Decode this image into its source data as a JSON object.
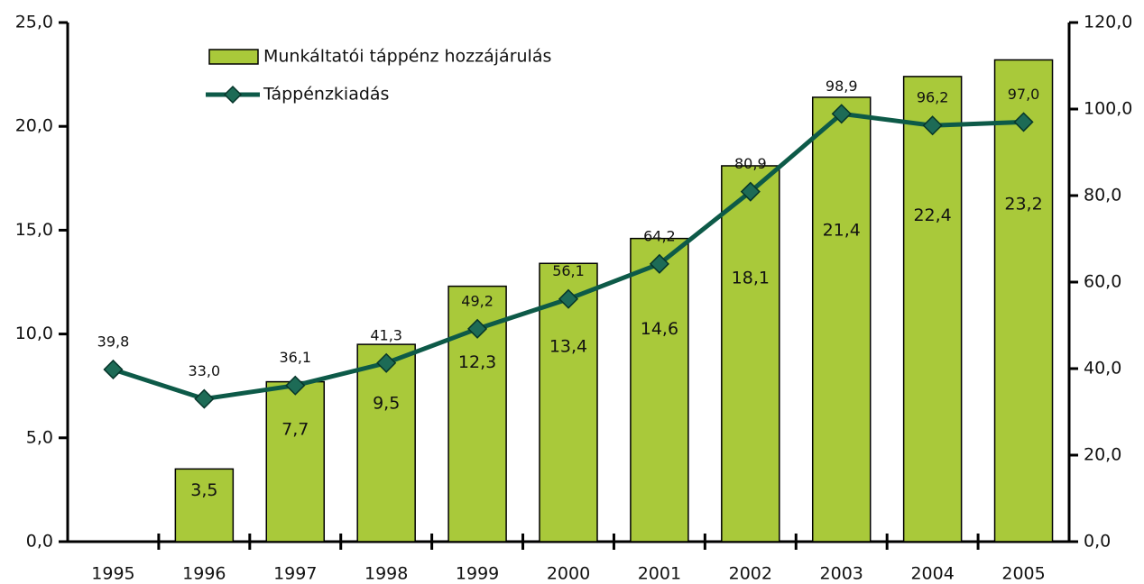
{
  "chart_data": {
    "type": "bar",
    "categories": [
      "1995",
      "1996",
      "1997",
      "1998",
      "1999",
      "2000",
      "2001",
      "2002",
      "2003",
      "2004",
      "2005"
    ],
    "series": [
      {
        "name": "Munkáltatói táppénz hozzájárulás",
        "type": "bar",
        "color": "#a9c93a",
        "values": [
          null,
          3.5,
          7.7,
          9.5,
          12.3,
          13.4,
          14.6,
          18.1,
          21.4,
          22.4,
          23.2
        ],
        "value_labels": [
          null,
          "3,5",
          "7,7",
          "9,5",
          "12,3",
          "13,4",
          "14,6",
          "18,1",
          "21,4",
          "22,4",
          "23,2"
        ]
      },
      {
        "name": "Táppénzkiadás",
        "type": "line",
        "axis": "y2",
        "color": "#0d5a48",
        "values": [
          39.8,
          33.0,
          36.1,
          41.3,
          49.2,
          56.1,
          64.2,
          80.9,
          98.9,
          96.2,
          97.0
        ],
        "value_labels": [
          "39,8",
          "33,0",
          "36,1",
          "41,3",
          "49,2",
          "56,1",
          "64,2",
          "80,9",
          "98,9",
          "96,2",
          "97,0"
        ]
      }
    ],
    "ylim": [
      0,
      25
    ],
    "yticks": [
      {
        "value": 0,
        "label": "0,0"
      },
      {
        "value": 5,
        "label": "5,0"
      },
      {
        "value": 10,
        "label": "10,0"
      },
      {
        "value": 15,
        "label": "15,0"
      },
      {
        "value": 20,
        "label": "20,0"
      },
      {
        "value": 25,
        "label": "25,0"
      }
    ],
    "y2lim": [
      0,
      120
    ],
    "y2ticks": [
      {
        "value": 0,
        "label": "0,0"
      },
      {
        "value": 20,
        "label": "20,0"
      },
      {
        "value": 40,
        "label": "40,0"
      },
      {
        "value": 60,
        "label": "60,0"
      },
      {
        "value": 80,
        "label": "80,0"
      },
      {
        "value": 100,
        "label": "100,0"
      },
      {
        "value": 120,
        "label": "120,0"
      }
    ],
    "legend": "top-left",
    "grid": false
  }
}
